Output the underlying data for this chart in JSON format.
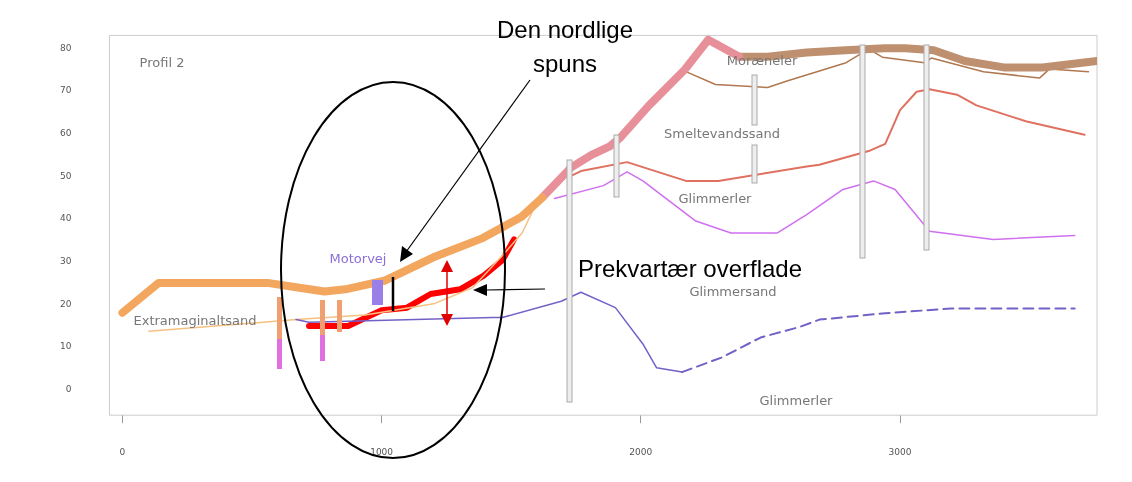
{
  "chart_data": {
    "type": "line",
    "xlim": [
      -50,
      3760
    ],
    "ylim": [
      -6,
      83
    ],
    "xticks": [
      0,
      1000,
      2000,
      3000
    ],
    "yticks": [
      0,
      10,
      20,
      30,
      40,
      50,
      60,
      70,
      80
    ],
    "grid": false,
    "legend": false,
    "marker": "none",
    "series": [
      {
        "color": "#f2a65e",
        "x": [
          0,
          140,
          560,
          670,
          780,
          860,
          1010,
          1200,
          1390,
          1540,
          1620
        ],
        "values": [
          18,
          25,
          25,
          24,
          23,
          23.5,
          25.5,
          31,
          35.5,
          40.5,
          45
        ]
      },
      {
        "color": "#e8909a",
        "x": [
          1620,
          1730,
          1810,
          1880,
          1920,
          2030,
          2170,
          2260,
          2380
        ],
        "values": [
          45,
          52,
          55,
          57,
          59,
          66.5,
          75,
          82,
          78
        ]
      },
      {
        "color": "#bf9070",
        "x": [
          2380,
          2490,
          2640,
          2790,
          2940,
          3020,
          3130,
          3250,
          3400,
          3550,
          3760
        ],
        "values": [
          78,
          78,
          79,
          79.5,
          80,
          80,
          79.5,
          77,
          75.5,
          75.5,
          77
        ]
      },
      {
        "color": "#b07850",
        "x": [
          2174,
          2288,
          2489,
          2564,
          2792,
          2879,
          2932,
          3095,
          3121,
          3322,
          3538,
          3576,
          3727
        ],
        "values": [
          74.5,
          71.5,
          70.8,
          72.3,
          76.6,
          79.8,
          77.9,
          76.6,
          77.7,
          74.5,
          73,
          75.1,
          74.5
        ]
      },
      {
        "color": "#e07060",
        "x": [
          1731,
          1769,
          1947,
          2174,
          2299,
          2640,
          2689,
          2879,
          2943,
          3000,
          3064,
          3114,
          3220,
          3295,
          3485,
          3712
        ],
        "values": [
          50.1,
          51.2,
          53.3,
          48.9,
          48.9,
          52.3,
          52.7,
          55.9,
          57.6,
          65.5,
          69.8,
          70.4,
          69.1,
          66.6,
          62.9,
          59.7
        ]
      },
      {
        "color": "#d070f0",
        "x": [
          1667,
          1856,
          1947,
          2008,
          2212,
          2348,
          2527,
          2640,
          2780,
          2898,
          2981,
          3114,
          3360,
          3674
        ],
        "values": [
          44.8,
          47.8,
          51,
          48.9,
          39.5,
          36.7,
          36.7,
          41,
          46.9,
          48.9,
          46.9,
          37.1,
          35.2,
          36.1
        ]
      },
      {
        "color": "#7560c8",
        "x": [
          670,
          720,
          1428,
          1466,
          1693,
          1769,
          1902,
          2008,
          2061,
          2159
        ],
        "values": [
          16.4,
          15.8,
          16.9,
          16.9,
          20.7,
          22.8,
          19.2,
          10.7,
          5.1,
          4.1
        ]
      },
      {
        "color": "#7560c8",
        "line_style": "dashed",
        "x": [
          2159,
          2311,
          2462,
          2614,
          2689,
          2943,
          3197,
          3674
        ],
        "values": [
          4.1,
          7.5,
          12.2,
          14.7,
          16.4,
          17.9,
          19,
          19
        ]
      },
      {
        "color": "#f5c080",
        "x": [
          102,
          670,
          936,
          1201,
          1352,
          1466,
          1542,
          1606
        ],
        "values": [
          13.7,
          16.4,
          17.5,
          20.1,
          23.9,
          31.4,
          36.7,
          44.8
        ]
      },
      {
        "color": "#ff0000",
        "x": [
          720,
          871,
          1000,
          1098,
          1189,
          1303,
          1394,
          1466,
          1511
        ],
        "values": [
          14.9,
          14.9,
          18.6,
          19.2,
          22.4,
          23.5,
          26.7,
          30.3,
          35.2
        ]
      }
    ],
    "annotations": [
      "Profil 2",
      "Extramaginaltsand",
      "Motorvej",
      "Moræneler",
      "Smeltevandssand",
      "Glimmerler",
      "Glimmersand",
      "Glimmerler",
      "Den nordlige spuns",
      "Prekvartær overflade"
    ]
  }
}
